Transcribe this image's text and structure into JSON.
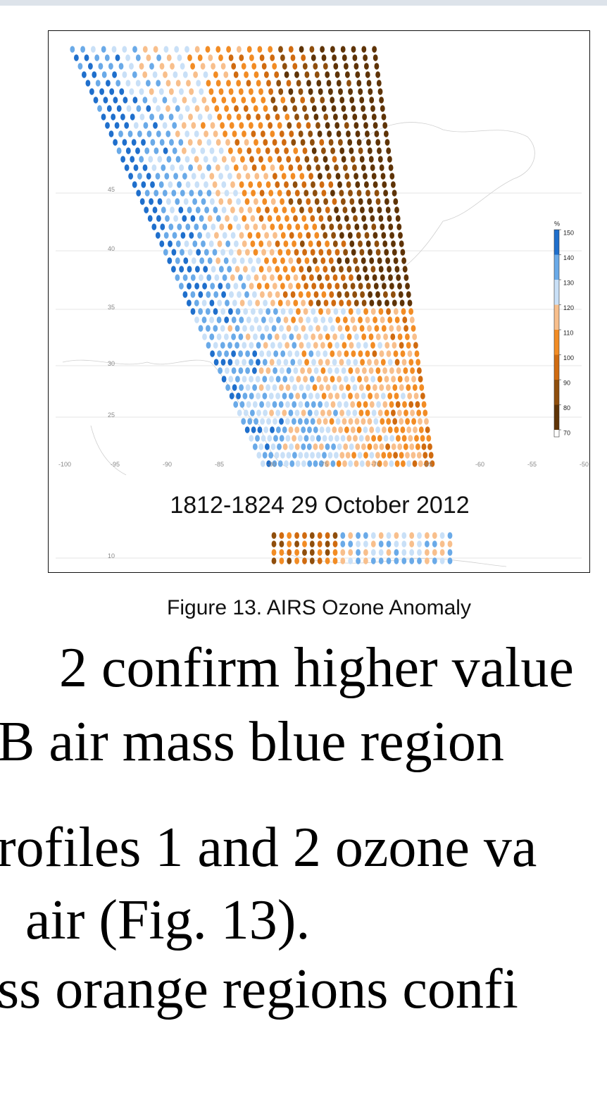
{
  "figure": {
    "timestamp": "1812-1824 29 October 2012",
    "lat_labels": [
      "45",
      "40",
      "35",
      "30",
      "25",
      "10"
    ],
    "lon_labels": [
      "-100",
      "-95",
      "-90",
      "-85",
      "-80",
      "-75",
      "-70",
      "-65",
      "-60",
      "-55",
      "-50"
    ],
    "colorbar": {
      "unit": "%",
      "ticks": [
        70,
        80,
        90,
        100,
        110,
        120,
        130,
        140,
        150
      ],
      "colors": [
        "#5e3306",
        "#8f4e0c",
        "#d06b10",
        "#f28c24",
        "#f8bf8c",
        "#c9e0f7",
        "#6aaae8",
        "#1f6fcc"
      ]
    },
    "caption": "Figure 13. AIRS Ozone Anomaly"
  },
  "body": {
    "lines": [
      "2 confirm higher value",
      "B air mass blue region",
      "rofiles 1 and 2 ozone va",
      "air (Fig. 13).",
      "ss orange regions confi"
    ]
  }
}
